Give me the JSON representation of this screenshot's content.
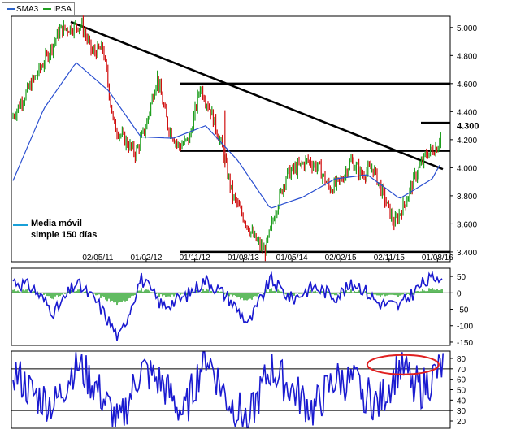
{
  "legend": {
    "sma_label": "SMA3",
    "ipsa_label": "IPSA"
  },
  "annotation": {
    "line1": "Media móvil",
    "line2": "simple 150 días"
  },
  "colors": {
    "frame": "#000000",
    "up": "#1f9e1f",
    "down": "#d01010",
    "ma150": "#2a4fd0",
    "sma_legend": "#2a62c8",
    "ipsa_legend": "#1f9e1f",
    "osc": "#1a1ad0",
    "hist_pos": "#1f9e1f",
    "hist_neg": "#1f9e1f",
    "ellipse": "#e02020",
    "trend": "#000000",
    "lastbox": "#000000"
  },
  "chart_data": [
    {
      "type": "line",
      "title": "",
      "series": [
        {
          "name": "IPSA",
          "x": [
            "2010-01",
            "2010-07",
            "2010-10",
            "2011-02",
            "2011-04",
            "2011-06",
            "2011-08",
            "2011-10",
            "2011-12",
            "2012-02",
            "2012-04",
            "2012-06",
            "2012-08",
            "2012-10",
            "2012-12",
            "2013-02",
            "2013-04",
            "2013-06",
            "2013-08",
            "2013-10",
            "2013-12",
            "2014-02",
            "2014-04",
            "2014-06",
            "2014-08",
            "2014-10",
            "2014-12",
            "2015-02",
            "2015-04",
            "2015-06",
            "2015-08",
            "2015-10",
            "2015-12",
            "2016-02",
            "2016-04",
            "2016-06",
            "2016-08",
            "2016-09"
          ],
          "values": [
            4350,
            4750,
            4980,
            5020,
            4820,
            4850,
            4300,
            4200,
            4100,
            4300,
            4650,
            4300,
            4150,
            4200,
            4580,
            4400,
            4150,
            3800,
            3650,
            3500,
            3400,
            3700,
            3950,
            4000,
            4050,
            4000,
            3850,
            3900,
            4050,
            3950,
            4000,
            3800,
            3600,
            3750,
            3950,
            4100,
            4150,
            4300
          ]
        },
        {
          "name": "SMA3",
          "x": [
            "2010-01",
            "2010-07",
            "2011-01",
            "2011-07",
            "2012-01",
            "2012-07",
            "2013-01",
            "2013-07",
            "2014-01",
            "2014-07",
            "2015-01",
            "2015-07",
            "2016-01",
            "2016-07",
            "2016-09"
          ],
          "values": [
            3880,
            4420,
            4750,
            4550,
            4220,
            4210,
            4300,
            4050,
            3710,
            3790,
            3920,
            3950,
            3780,
            3920,
            4060
          ]
        }
      ],
      "x_ticks": [
        "02/05/11",
        "01/02/12",
        "01/11/12",
        "01/08/13",
        "01/05/14",
        "02/02/15",
        "02/11/15",
        "01/08/16"
      ],
      "y_ticks": [
        3400,
        3600,
        3800,
        4000,
        4200,
        4400,
        4600,
        4800,
        5000
      ],
      "ylim": [
        3330,
        5080
      ],
      "horizontal_levels": [
        4600,
        4120,
        3400
      ],
      "trendline": {
        "from": [
          "2010-12",
          5040
        ],
        "to": [
          "2016-09",
          3990
        ]
      },
      "last_value_label": "4.300",
      "last_value": 4300
    },
    {
      "type": "line",
      "title": "",
      "y_ticks": [
        50,
        0,
        -50,
        -100,
        -150
      ],
      "ylim": [
        -160,
        75
      ],
      "zero_line": 0,
      "series": [
        {
          "name": "oscillator",
          "x": [
            "2010-01",
            "2010-05",
            "2010-09",
            "2011-01",
            "2011-05",
            "2011-09",
            "2012-01",
            "2012-05",
            "2012-09",
            "2013-01",
            "2013-05",
            "2013-09",
            "2014-01",
            "2014-05",
            "2014-09",
            "2015-01",
            "2015-05",
            "2015-09",
            "2016-01",
            "2016-05",
            "2016-09"
          ],
          "values": [
            40,
            15,
            -60,
            30,
            -30,
            -140,
            45,
            -40,
            -15,
            40,
            -10,
            -95,
            40,
            -20,
            20,
            -10,
            30,
            -30,
            -40,
            25,
            60
          ]
        }
      ]
    },
    {
      "type": "line",
      "title": "",
      "y_ticks": [
        80,
        70,
        60,
        50,
        40,
        30,
        20
      ],
      "ylim": [
        13,
        87
      ],
      "horizontal_levels": [
        70,
        30
      ],
      "series": [
        {
          "name": "rsi",
          "x": [
            "2010-01",
            "2010-05",
            "2010-09",
            "2011-01",
            "2011-05",
            "2011-09",
            "2012-01",
            "2012-05",
            "2012-09",
            "2013-01",
            "2013-05",
            "2013-09",
            "2014-01",
            "2014-05",
            "2014-09",
            "2015-01",
            "2015-05",
            "2015-09",
            "2016-01",
            "2016-05",
            "2016-09"
          ],
          "values": [
            70,
            45,
            35,
            75,
            50,
            15,
            70,
            55,
            25,
            85,
            40,
            20,
            70,
            50,
            30,
            60,
            55,
            35,
            72,
            50,
            72
          ]
        }
      ],
      "highlight": "2016 overbought zone"
    }
  ]
}
